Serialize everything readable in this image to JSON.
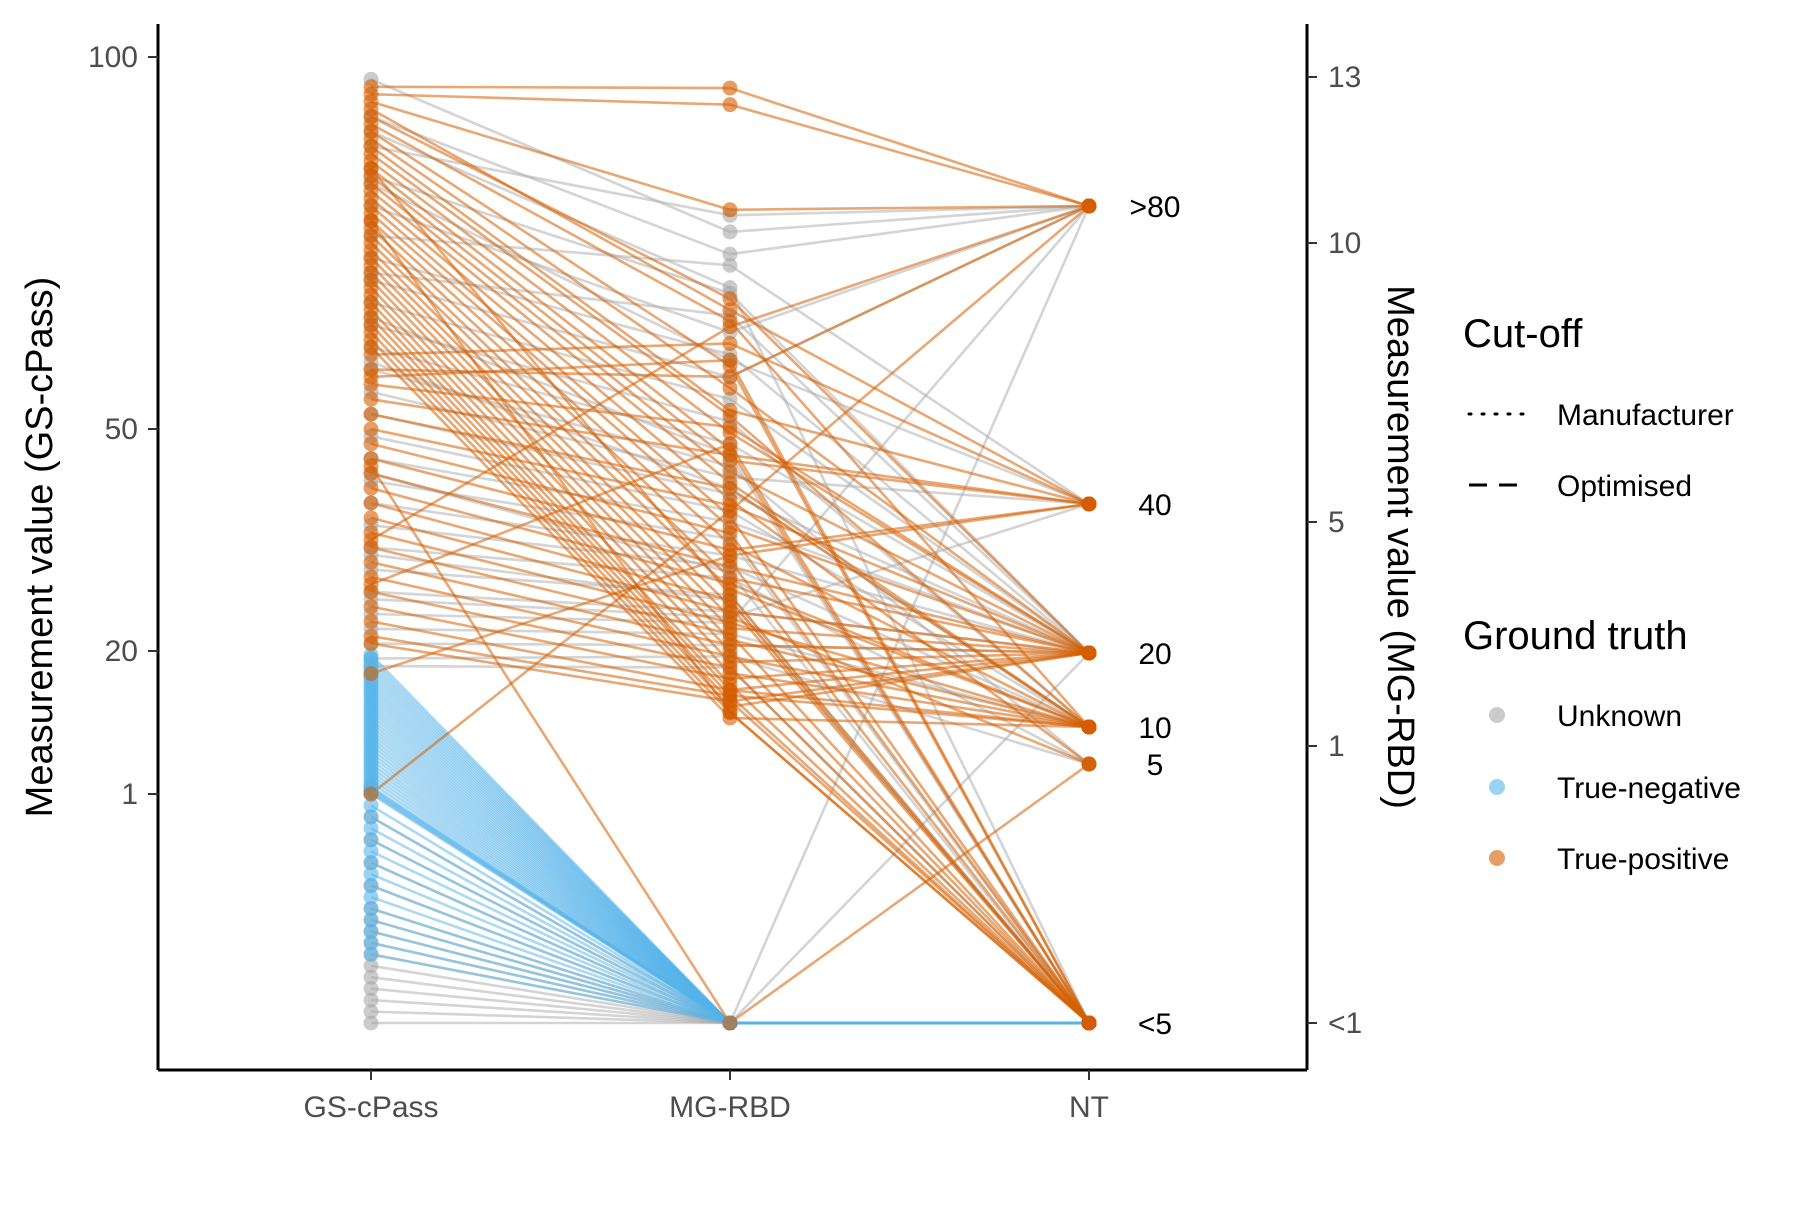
{
  "chart_data": {
    "type": "line",
    "subtype": "parallel-coordinates",
    "x_categories": [
      "GS-cPass",
      "MG-RBD",
      "NT"
    ],
    "y_left": {
      "label": "Measurement value (GS-cPass)",
      "ticks": [
        {
          "value": 100,
          "label": "100"
        },
        {
          "value": 50,
          "label": "50"
        },
        {
          "value": 20,
          "label": "20"
        },
        {
          "value": 1,
          "label": "1"
        }
      ]
    },
    "y_right": {
      "label": "Measurement value (MG-RBD)",
      "ticks": [
        {
          "value": 13,
          "label": "13"
        },
        {
          "value": 10,
          "label": "10"
        },
        {
          "value": 5,
          "label": "5"
        },
        {
          "value": 1,
          "label": "1"
        },
        {
          "value": -1,
          "label": "<1"
        }
      ]
    },
    "nt_levels": [
      {
        "value": 80,
        "label": ">80"
      },
      {
        "value": 40,
        "label": "40"
      },
      {
        "value": 20,
        "label": "20"
      },
      {
        "value": 10,
        "label": "10"
      },
      {
        "value": 5,
        "label": "5"
      },
      {
        "value": 0,
        "label": "<5"
      }
    ],
    "legend": {
      "cutoff": {
        "title": "Cut-off",
        "items": [
          {
            "label": "Manufacturer",
            "style": "dotted"
          },
          {
            "label": "Optimised",
            "style": "dashed"
          }
        ]
      },
      "ground_truth": {
        "title": "Ground truth",
        "items": [
          {
            "label": "Unknown",
            "color": "#a9a9a9"
          },
          {
            "label": "True-negative",
            "color": "#56b4e9"
          },
          {
            "label": "True-positive",
            "color": "#d55e00"
          }
        ]
      }
    },
    "series_colors": {
      "Unknown": "#a9a9a9",
      "True-negative": "#56b4e9",
      "True-positive": "#d55e00"
    },
    "samples": {
      "Unknown": [
        [
          97,
          10.2,
          ">80"
        ],
        [
          92,
          9.8,
          ">80"
        ],
        [
          88,
          10.5,
          ">80"
        ],
        [
          84,
          9.1,
          "20"
        ],
        [
          80,
          8.4,
          ">80"
        ],
        [
          76,
          9.6,
          "40"
        ],
        [
          73,
          8.0,
          "20"
        ],
        [
          70,
          7.6,
          ">80"
        ],
        [
          67,
          7.2,
          "20"
        ],
        [
          64,
          6.8,
          "10"
        ],
        [
          61,
          6.4,
          "20"
        ],
        [
          58,
          6.0,
          "5"
        ],
        [
          55,
          5.8,
          "40"
        ],
        [
          52,
          5.5,
          "20"
        ],
        [
          49,
          5.2,
          "10"
        ],
        [
          46,
          5.0,
          "20"
        ],
        [
          43,
          4.7,
          "<5"
        ],
        [
          40,
          4.4,
          "20"
        ],
        [
          37,
          4.2,
          "10"
        ],
        [
          34,
          4.0,
          "5"
        ],
        [
          31,
          3.7,
          "<5"
        ],
        [
          28,
          3.4,
          "20"
        ],
        [
          25,
          3.2,
          ">80"
        ],
        [
          23,
          3.0,
          "10"
        ],
        [
          21,
          2.8,
          "20"
        ],
        [
          19,
          2.6,
          "5"
        ],
        [
          18,
          2.4,
          "<5"
        ],
        [
          90,
          9.2,
          "<5"
        ],
        [
          65,
          6.2,
          "<5"
        ],
        [
          44,
          4.1,
          "<5"
        ],
        [
          33,
          3.6,
          "<5"
        ],
        [
          27,
          3.3,
          "40"
        ],
        [
          59,
          5.6,
          "10"
        ],
        [
          71,
          8.7,
          "20"
        ],
        [
          83,
          7.9,
          "40"
        ],
        [
          0.9,
          -1,
          "<5"
        ],
        [
          0.7,
          -1,
          "<5"
        ],
        [
          0.6,
          -1,
          "<5"
        ],
        [
          0.5,
          -1,
          "<5"
        ],
        [
          0.4,
          -1,
          "<5"
        ],
        [
          0.35,
          -1,
          "<5"
        ],
        [
          0.3,
          -1,
          "<5"
        ],
        [
          0.25,
          -1,
          "<5"
        ],
        [
          0.2,
          -1,
          "<5"
        ],
        [
          0.15,
          -1,
          "<5"
        ],
        [
          0.1,
          -1,
          "<5"
        ],
        [
          0.05,
          -1,
          "<5"
        ],
        [
          0.0,
          -1,
          "<5"
        ],
        [
          0.8,
          -1,
          "20"
        ],
        [
          0.45,
          -1,
          ">80"
        ]
      ],
      "True-negative": [
        [
          19.5,
          -1,
          "<5"
        ],
        [
          19,
          -1,
          "<5"
        ],
        [
          18.5,
          -1,
          "<5"
        ],
        [
          18,
          -1,
          "<5"
        ],
        [
          17.5,
          -1,
          "<5"
        ],
        [
          17,
          -1,
          "<5"
        ],
        [
          16.5,
          -1,
          "<5"
        ],
        [
          16,
          -1,
          "<5"
        ],
        [
          15.5,
          -1,
          "<5"
        ],
        [
          15,
          -1,
          "<5"
        ],
        [
          14.5,
          -1,
          "<5"
        ],
        [
          14,
          -1,
          "<5"
        ],
        [
          13.5,
          -1,
          "<5"
        ],
        [
          13,
          -1,
          "<5"
        ],
        [
          12.5,
          -1,
          "<5"
        ],
        [
          12,
          -1,
          "<5"
        ],
        [
          11.5,
          -1,
          "<5"
        ],
        [
          11,
          -1,
          "<5"
        ],
        [
          10.5,
          -1,
          "<5"
        ],
        [
          10,
          -1,
          "<5"
        ],
        [
          9.5,
          -1,
          "<5"
        ],
        [
          9,
          -1,
          "<5"
        ],
        [
          8.5,
          -1,
          "<5"
        ],
        [
          8,
          -1,
          "<5"
        ],
        [
          7.5,
          -1,
          "<5"
        ],
        [
          7,
          -1,
          "<5"
        ],
        [
          6.5,
          -1,
          "<5"
        ],
        [
          6,
          -1,
          "<5"
        ],
        [
          5.5,
          -1,
          "<5"
        ],
        [
          5,
          -1,
          "<5"
        ],
        [
          4.5,
          -1,
          "<5"
        ],
        [
          4,
          -1,
          "<5"
        ],
        [
          3.5,
          -1,
          "<5"
        ],
        [
          3,
          -1,
          "<5"
        ],
        [
          2.5,
          -1,
          "<5"
        ],
        [
          2,
          -1,
          "<5"
        ],
        [
          1.8,
          -1,
          "<5"
        ],
        [
          1.6,
          -1,
          "<5"
        ],
        [
          1.4,
          -1,
          "<5"
        ],
        [
          1.2,
          -1,
          "<5"
        ],
        [
          1.0,
          -1,
          "<5"
        ],
        [
          0.95,
          -1,
          "<5"
        ],
        [
          0.9,
          -1,
          "<5"
        ],
        [
          0.85,
          -1,
          "<5"
        ],
        [
          0.8,
          -1,
          "<5"
        ],
        [
          0.75,
          -1,
          "<5"
        ],
        [
          0.7,
          -1,
          "<5"
        ],
        [
          0.65,
          -1,
          "<5"
        ],
        [
          0.6,
          -1,
          "<5"
        ],
        [
          0.55,
          -1,
          "<5"
        ],
        [
          0.5,
          -1,
          "<5"
        ],
        [
          0.45,
          -1,
          "<5"
        ],
        [
          0.4,
          -1,
          "<5"
        ],
        [
          0.35,
          -1,
          "<5"
        ],
        [
          0.3,
          -1,
          "<5"
        ]
      ],
      "True-positive": [
        [
          96,
          12.8,
          ">80"
        ],
        [
          95,
          12.5,
          ">80"
        ],
        [
          94,
          10.6,
          ">80"
        ],
        [
          93,
          8.8,
          "40"
        ],
        [
          92,
          9.0,
          "20"
        ],
        [
          91,
          8.6,
          "10"
        ],
        [
          90,
          7.8,
          "<5"
        ],
        [
          89,
          7.4,
          "20"
        ],
        [
          88,
          7.0,
          "40"
        ],
        [
          87,
          6.9,
          "10"
        ],
        [
          86,
          6.6,
          "20"
        ],
        [
          85,
          6.3,
          "<5"
        ],
        [
          84,
          6.1,
          "40"
        ],
        [
          83,
          5.9,
          "20"
        ],
        [
          82,
          5.7,
          "10"
        ],
        [
          81,
          5.4,
          "5"
        ],
        [
          80,
          5.1,
          "<5"
        ],
        [
          79,
          4.9,
          "20"
        ],
        [
          78,
          4.6,
          "10"
        ],
        [
          77,
          4.3,
          "<5"
        ],
        [
          76,
          4.0,
          "20"
        ],
        [
          75,
          3.8,
          "10"
        ],
        [
          74,
          3.5,
          "<5"
        ],
        [
          73,
          3.3,
          "5"
        ],
        [
          72,
          3.1,
          "20"
        ],
        [
          71,
          2.9,
          "10"
        ],
        [
          70,
          2.7,
          "<5"
        ],
        [
          69,
          2.5,
          "20"
        ],
        [
          68,
          2.3,
          "10"
        ],
        [
          67,
          2.1,
          "<5"
        ],
        [
          66,
          2.0,
          "20"
        ],
        [
          65,
          1.9,
          "10"
        ],
        [
          64,
          1.8,
          "<5"
        ],
        [
          63,
          1.7,
          "20"
        ],
        [
          62,
          1.6,
          "<5"
        ],
        [
          61,
          1.5,
          "10"
        ],
        [
          60,
          8.2,
          "40"
        ],
        [
          58,
          7.6,
          ">80"
        ],
        [
          56,
          6.7,
          "20"
        ],
        [
          54,
          6.2,
          "40"
        ],
        [
          52,
          5.6,
          "10"
        ],
        [
          50,
          5.3,
          "20"
        ],
        [
          48,
          4.8,
          "<5"
        ],
        [
          46,
          4.5,
          "40"
        ],
        [
          44,
          4.2,
          "20"
        ],
        [
          42,
          3.9,
          "10"
        ],
        [
          40,
          3.6,
          "<5"
        ],
        [
          38,
          3.4,
          "20"
        ],
        [
          36,
          3.2,
          "10"
        ],
        [
          34,
          3.0,
          "<5"
        ],
        [
          32,
          2.8,
          "20"
        ],
        [
          30,
          2.6,
          "10"
        ],
        [
          28,
          2.4,
          "<5"
        ],
        [
          26,
          2.2,
          "20"
        ],
        [
          24,
          2.0,
          "10"
        ],
        [
          22,
          1.9,
          "<5"
        ],
        [
          21,
          1.8,
          "20"
        ],
        [
          17,
          4.4,
          "40"
        ],
        [
          1.0,
          5.2,
          ">80"
        ],
        [
          45,
          -1,
          "5"
        ],
        [
          35,
          8.5,
          ">80"
        ],
        [
          57,
          7.9,
          "<5"
        ],
        [
          29,
          6.4,
          "<5"
        ],
        [
          85,
          3.7,
          "<5"
        ],
        [
          78,
          1.6,
          "<5"
        ]
      ]
    }
  }
}
